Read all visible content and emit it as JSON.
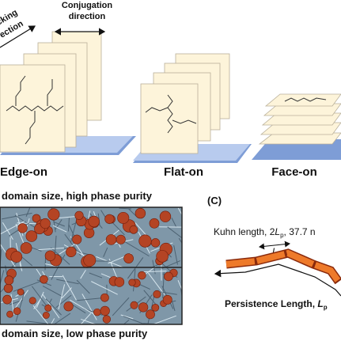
{
  "panel_a": {
    "stacking_label": [
      "cking",
      "ection"
    ],
    "conjugation_label": [
      "Conjugation",
      "direction"
    ],
    "orientations": [
      "Edge-on",
      "Flat-on",
      "Face-on"
    ]
  },
  "panel_b": {
    "top_caption": "domain size, high phase purity",
    "bottom_caption": "domain size, low phase purity"
  },
  "panel_c": {
    "label": "(C)",
    "kuhn": {
      "text": "Kuhn length, 2",
      "symbol": "L",
      "subscript": "p",
      "suffix": ", 37.7 n"
    },
    "segment": {
      "symbol": "L",
      "subscript": "p"
    },
    "persistence": {
      "text": "Persistence Length, ",
      "symbol": "L",
      "subscript": "p"
    }
  }
}
